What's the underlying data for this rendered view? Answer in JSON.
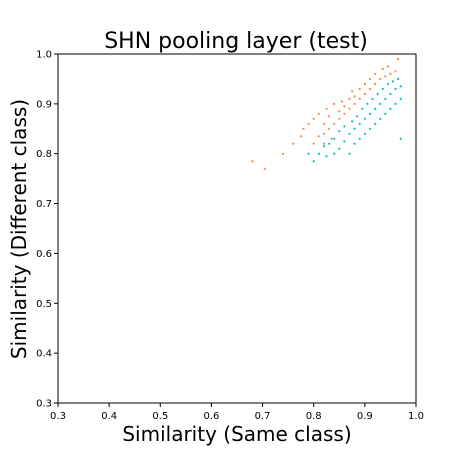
{
  "chart_data": {
    "type": "scatter",
    "title": "SHN pooling layer  (test)",
    "xlabel": "Similarity (Same class)",
    "ylabel": "Similarity (Different class)",
    "xlim": [
      0.3,
      1.0
    ],
    "ylim": [
      0.3,
      1.0
    ],
    "xticks": [
      "0.3",
      "0.4",
      "0.5",
      "0.6",
      "0.7",
      "0.8",
      "0.9",
      "1.0"
    ],
    "yticks": [
      "0.3",
      "0.4",
      "0.5",
      "0.6",
      "0.7",
      "0.8",
      "0.9",
      "1.0"
    ],
    "grid": false,
    "legend": "none",
    "series": [
      {
        "color": "#f4894b",
        "points": [
          [
            0.68,
            0.785
          ],
          [
            0.705,
            0.77
          ],
          [
            0.74,
            0.8
          ],
          [
            0.76,
            0.82
          ],
          [
            0.775,
            0.835
          ],
          [
            0.78,
            0.85
          ],
          [
            0.79,
            0.86
          ],
          [
            0.8,
            0.82
          ],
          [
            0.8,
            0.87
          ],
          [
            0.81,
            0.835
          ],
          [
            0.81,
            0.88
          ],
          [
            0.82,
            0.84
          ],
          [
            0.82,
            0.86
          ],
          [
            0.825,
            0.89
          ],
          [
            0.83,
            0.85
          ],
          [
            0.83,
            0.875
          ],
          [
            0.84,
            0.86
          ],
          [
            0.84,
            0.9
          ],
          [
            0.85,
            0.87
          ],
          [
            0.85,
            0.885
          ],
          [
            0.855,
            0.905
          ],
          [
            0.86,
            0.88
          ],
          [
            0.86,
            0.895
          ],
          [
            0.87,
            0.89
          ],
          [
            0.87,
            0.91
          ],
          [
            0.875,
            0.925
          ],
          [
            0.88,
            0.9
          ],
          [
            0.88,
            0.915
          ],
          [
            0.89,
            0.91
          ],
          [
            0.89,
            0.93
          ],
          [
            0.9,
            0.92
          ],
          [
            0.9,
            0.94
          ],
          [
            0.91,
            0.93
          ],
          [
            0.91,
            0.95
          ],
          [
            0.92,
            0.94
          ],
          [
            0.92,
            0.96
          ],
          [
            0.93,
            0.95
          ],
          [
            0.935,
            0.97
          ],
          [
            0.94,
            0.955
          ],
          [
            0.945,
            0.975
          ],
          [
            0.95,
            0.96
          ],
          [
            0.96,
            0.965
          ],
          [
            0.965,
            0.99
          ],
          [
            0.82,
            0.82
          ],
          [
            0.835,
            0.83
          ]
        ]
      },
      {
        "color": "#00bfbf",
        "points": [
          [
            0.79,
            0.8
          ],
          [
            0.8,
            0.785
          ],
          [
            0.81,
            0.8
          ],
          [
            0.82,
            0.815
          ],
          [
            0.825,
            0.795
          ],
          [
            0.83,
            0.82
          ],
          [
            0.84,
            0.8
          ],
          [
            0.84,
            0.83
          ],
          [
            0.85,
            0.81
          ],
          [
            0.85,
            0.845
          ],
          [
            0.86,
            0.825
          ],
          [
            0.86,
            0.855
          ],
          [
            0.87,
            0.8
          ],
          [
            0.87,
            0.84
          ],
          [
            0.875,
            0.865
          ],
          [
            0.88,
            0.82
          ],
          [
            0.88,
            0.85
          ],
          [
            0.885,
            0.875
          ],
          [
            0.89,
            0.83
          ],
          [
            0.89,
            0.86
          ],
          [
            0.895,
            0.89
          ],
          [
            0.9,
            0.84
          ],
          [
            0.9,
            0.87
          ],
          [
            0.905,
            0.9
          ],
          [
            0.91,
            0.85
          ],
          [
            0.91,
            0.88
          ],
          [
            0.915,
            0.91
          ],
          [
            0.92,
            0.86
          ],
          [
            0.92,
            0.89
          ],
          [
            0.925,
            0.92
          ],
          [
            0.93,
            0.87
          ],
          [
            0.93,
            0.9
          ],
          [
            0.935,
            0.93
          ],
          [
            0.94,
            0.88
          ],
          [
            0.94,
            0.91
          ],
          [
            0.945,
            0.94
          ],
          [
            0.95,
            0.89
          ],
          [
            0.95,
            0.92
          ],
          [
            0.955,
            0.945
          ],
          [
            0.96,
            0.9
          ],
          [
            0.96,
            0.93
          ],
          [
            0.965,
            0.95
          ],
          [
            0.97,
            0.91
          ],
          [
            0.97,
            0.935
          ],
          [
            0.97,
            0.83
          ]
        ]
      }
    ]
  }
}
